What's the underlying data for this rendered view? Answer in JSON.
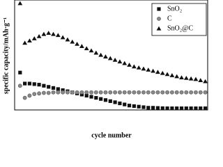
{
  "chart_data": {
    "type": "scatter",
    "xlabel": "cycle number",
    "ylabel": "specific capacity/mAh·g⁻¹",
    "x": [
      1,
      2,
      3,
      4,
      5,
      6,
      7,
      8,
      9,
      10,
      11,
      12,
      13,
      14,
      15,
      16,
      17,
      18,
      19,
      20,
      21,
      22,
      23,
      24,
      25,
      26,
      27,
      28,
      29,
      30,
      31,
      32,
      33,
      34,
      35,
      36,
      37,
      38,
      39,
      40
    ],
    "xlim": [
      0,
      40.5
    ],
    "ylim": [
      0,
      100
    ],
    "legend": "upper right",
    "series": [
      {
        "name": "SnO₂",
        "color": "#111111",
        "marker": "square",
        "values": [
          34,
          24,
          24,
          23.5,
          23,
          22,
          21,
          20,
          19,
          18,
          17,
          16,
          15,
          14,
          13,
          12,
          11,
          10,
          9,
          8,
          7,
          6,
          5,
          4,
          3.5,
          3,
          2.5,
          2,
          2,
          1.8,
          1.6,
          1.5,
          1.5,
          1.5,
          1.5,
          1.5,
          1.5,
          1.5,
          1.5,
          1.5
        ]
      },
      {
        "name": "C",
        "color": "#555555",
        "marker": "circle",
        "values": [
          22,
          11,
          13,
          14.5,
          15,
          15.5,
          15.5,
          16,
          16,
          16,
          16,
          16,
          16,
          16,
          16,
          16,
          16,
          16,
          16,
          16,
          16,
          16,
          16,
          16,
          16,
          16,
          16,
          16,
          16,
          16,
          16,
          16,
          16,
          16,
          16,
          16,
          16,
          16,
          16,
          16
        ]
      },
      {
        "name": "SnO₂@C",
        "color": "#111111",
        "marker": "triangle",
        "values": [
          97,
          61,
          63,
          65,
          67,
          69,
          70,
          69,
          68,
          66,
          64,
          62,
          60,
          58,
          56,
          54,
          52,
          50,
          48.5,
          47,
          45.5,
          44,
          42.5,
          41,
          39.5,
          38.5,
          37.5,
          36.5,
          35.5,
          34.5,
          33.5,
          32.5,
          31.5,
          30.5,
          29.5,
          29,
          28.5,
          28,
          27,
          26
        ]
      }
    ]
  }
}
